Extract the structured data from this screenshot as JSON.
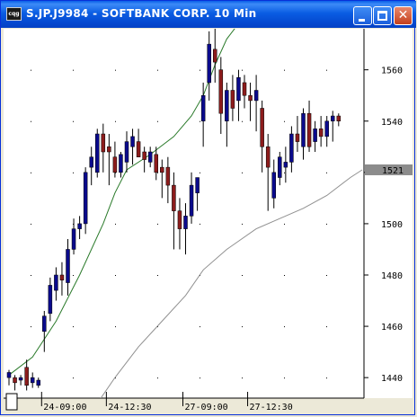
{
  "window": {
    "title": "S.JP.J9984 - SOFTBANK CORP. 10 Min",
    "app_icon_text": "cqg",
    "close_glyph": "✕"
  },
  "chart_data": {
    "type": "candlestick",
    "title": "S.JP.J9984 - SOFTBANK CORP. 10 Min",
    "y_ticks": [
      1440,
      1460,
      1480,
      1500,
      1520,
      1540,
      1560
    ],
    "y_tick_labels": [
      "1440",
      "1460",
      "1480",
      "1500",
      "",
      "1540",
      "1560"
    ],
    "ylim": [
      1432,
      1576
    ],
    "last_price_label": "1521",
    "last_price": 1521,
    "x_labels": [
      {
        "label": "24-09:00",
        "index": 6
      },
      {
        "label": "24-12:30",
        "index": 17
      },
      {
        "label": "27-09:00",
        "index": 30
      },
      {
        "label": "27-12:30",
        "index": 41
      }
    ],
    "candles": [
      [
        1440,
        1443,
        1437,
        1442
      ],
      [
        1440,
        1441,
        1435,
        1438
      ],
      [
        1439,
        1441,
        1437,
        1440
      ],
      [
        1444,
        1447,
        1435,
        1437
      ],
      [
        1438,
        1442,
        1436,
        1440
      ],
      [
        1437,
        1440,
        1436,
        1439
      ],
      [
        1458,
        1466,
        1450,
        1464
      ],
      [
        1465,
        1479,
        1462,
        1476
      ],
      [
        1474,
        1483,
        1470,
        1480
      ],
      [
        1480,
        1485,
        1472,
        1478
      ],
      [
        1477,
        1494,
        1472,
        1490
      ],
      [
        1490,
        1502,
        1488,
        1498
      ],
      [
        1498,
        1503,
        1494,
        1500
      ],
      [
        1500,
        1522,
        1496,
        1520
      ],
      [
        1522,
        1530,
        1515,
        1526
      ],
      [
        1520,
        1537,
        1518,
        1535
      ],
      [
        1535,
        1539,
        1520,
        1528
      ],
      [
        1530,
        1535,
        1515,
        1528
      ],
      [
        1526,
        1532,
        1518,
        1520
      ],
      [
        1520,
        1528,
        1518,
        1527
      ],
      [
        1524,
        1536,
        1520,
        1532
      ],
      [
        1530,
        1537,
        1523,
        1534
      ],
      [
        1532,
        1537,
        1526,
        1526
      ],
      [
        1528,
        1530,
        1520,
        1525
      ],
      [
        1524,
        1530,
        1522,
        1528
      ],
      [
        1527,
        1530,
        1517,
        1520
      ],
      [
        1522,
        1525,
        1510,
        1520
      ],
      [
        1522,
        1526,
        1508,
        1515
      ],
      [
        1515,
        1520,
        1490,
        1505
      ],
      [
        1505,
        1510,
        1490,
        1498
      ],
      [
        1498,
        1508,
        1488,
        1503
      ],
      [
        1503,
        1520,
        1500,
        1515
      ],
      [
        1512,
        1518,
        1505,
        1518
      ],
      [
        1540,
        1555,
        1530,
        1550
      ],
      [
        1555,
        1575,
        1548,
        1570
      ],
      [
        1568,
        1578,
        1555,
        1563
      ],
      [
        1560,
        1565,
        1535,
        1543
      ],
      [
        1540,
        1555,
        1530,
        1552
      ],
      [
        1552,
        1558,
        1540,
        1545
      ],
      [
        1548,
        1560,
        1540,
        1557
      ],
      [
        1555,
        1558,
        1545,
        1550
      ],
      [
        1550,
        1555,
        1540,
        1548
      ],
      [
        1548,
        1558,
        1536,
        1552
      ],
      [
        1545,
        1548,
        1520,
        1530
      ],
      [
        1530,
        1535,
        1505,
        1522
      ],
      [
        1510,
        1525,
        1506,
        1520
      ],
      [
        1518,
        1528,
        1515,
        1526
      ],
      [
        1522,
        1530,
        1516,
        1524
      ],
      [
        1524,
        1538,
        1520,
        1535
      ],
      [
        1535,
        1542,
        1528,
        1532
      ],
      [
        1530,
        1545,
        1525,
        1543
      ],
      [
        1543,
        1548,
        1528,
        1530
      ],
      [
        1532,
        1540,
        1528,
        1537
      ],
      [
        1537,
        1542,
        1530,
        1534
      ],
      [
        1534,
        1542,
        1530,
        1540
      ],
      [
        1540,
        1544,
        1532,
        1542
      ],
      [
        1542,
        1543,
        1538,
        1540
      ]
    ],
    "series": [
      {
        "name": "",
        "color": "#2a7a2a",
        "points": [
          [
            0,
            1441
          ],
          [
            4,
            1448
          ],
          [
            8,
            1462
          ],
          [
            12,
            1480
          ],
          [
            16,
            1500
          ],
          [
            18,
            1512
          ],
          [
            20,
            1521
          ],
          [
            24,
            1527
          ],
          [
            28,
            1534
          ],
          [
            31,
            1542
          ],
          [
            33,
            1550
          ],
          [
            35,
            1562
          ],
          [
            37,
            1572
          ],
          [
            39,
            1578
          ]
        ]
      },
      {
        "name": "",
        "color": "#909090",
        "points": [
          [
            15,
            1430
          ],
          [
            18,
            1440
          ],
          [
            22,
            1452
          ],
          [
            26,
            1462
          ],
          [
            30,
            1472
          ],
          [
            33,
            1482
          ],
          [
            37,
            1490
          ],
          [
            42,
            1498
          ],
          [
            46,
            1502
          ],
          [
            50,
            1506
          ],
          [
            54,
            1511
          ],
          [
            58,
            1518
          ],
          [
            60,
            1521
          ]
        ]
      }
    ]
  }
}
